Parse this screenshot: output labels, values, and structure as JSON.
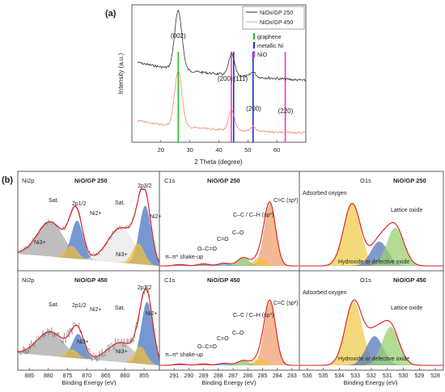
{
  "figure": {
    "panel_a_label": "(a)",
    "panel_b_label": "(b)"
  },
  "chart_data": [
    {
      "id": "xrd",
      "type": "line",
      "xlabel": "2 Theta (degree)",
      "ylabel": "Intensity (a.u.)",
      "xlim": [
        10,
        70
      ],
      "x_ticks": [
        20,
        30,
        40,
        50,
        60
      ],
      "legend": [
        {
          "name": "NiOx/GP 250",
          "color": "#333333"
        },
        {
          "name": "NiOx/GP 450",
          "color": "#f0a080"
        }
      ],
      "reference_legend": [
        {
          "name": "graphene",
          "color": "#22c022"
        },
        {
          "name": "metallic Ni",
          "color": "#1f2fd0"
        },
        {
          "name": "NiO",
          "color": "#ff33cc"
        }
      ],
      "reference_lines": [
        {
          "x": 26.0,
          "phase": "graphene",
          "color": "#22c022"
        },
        {
          "x": 44.3,
          "phase": "NiO",
          "color": "#ff33cc"
        },
        {
          "x": 45.1,
          "phase": "metallic Ni",
          "color": "#1f2fd0"
        },
        {
          "x": 51.8,
          "phase": "metallic Ni",
          "color": "#1f2fd0"
        },
        {
          "x": 62.9,
          "phase": "NiO",
          "color": "#ff33cc"
        }
      ],
      "peak_labels": [
        {
          "text": "(002)",
          "x": 26.0
        },
        {
          "text": "(200)",
          "x": 43.0
        },
        {
          "text": "(111)",
          "x": 46.5
        },
        {
          "text": "(200)",
          "x": 52.0
        },
        {
          "text": "(220)",
          "x": 63.0
        }
      ]
    },
    {
      "id": "ni2p",
      "type": "line",
      "element": "Ni2p",
      "xlabel": "Binding Energy (eV)",
      "xlim": [
        888,
        851
      ],
      "x_ticks": [
        885,
        880,
        875,
        870,
        865,
        860,
        855
      ],
      "panels": [
        {
          "sample": "NiO/GP 250",
          "labels": [
            "Sat.",
            "2p1/2",
            "Ni2+",
            "Ni3+",
            "Sat.",
            "Ni3+",
            "2p3/2",
            "Ni2+"
          ],
          "components": [
            {
              "name": "Sat.",
              "center": 879.5,
              "height": 0.5,
              "color": "#a8a8a8"
            },
            {
              "name": "Ni2+",
              "center": 872.5,
              "height": 0.55,
              "color": "#4a74c4"
            },
            {
              "name": "Ni3+",
              "center": 874.0,
              "height": 0.18,
              "color": "#f0c040"
            },
            {
              "name": "Sat.",
              "center": 861.0,
              "height": 0.5,
              "color": "#e8e8e8"
            },
            {
              "name": "Ni2+",
              "center": 854.7,
              "height": 0.85,
              "color": "#4a74c4"
            },
            {
              "name": "Ni3+",
              "center": 856.5,
              "height": 0.3,
              "color": "#f0c040"
            }
          ]
        },
        {
          "sample": "NiO/GP 450",
          "labels": [
            "Sat.",
            "2p1/2",
            "Ni2+",
            "Ni3+",
            "Sat.",
            "Ni3+",
            "2p3/2",
            "Ni2+"
          ],
          "components": [
            {
              "name": "Sat.",
              "center": 879.5,
              "height": 0.35,
              "color": "#a8a8a8"
            },
            {
              "name": "Ni2+",
              "center": 872.2,
              "height": 0.35,
              "color": "#4a74c4"
            },
            {
              "name": "Ni3+",
              "center": 873.8,
              "height": 0.12,
              "color": "#f0c040"
            },
            {
              "name": "Sat.",
              "center": 861.0,
              "height": 0.28,
              "color": "#b8b8b8"
            },
            {
              "name": "Ni2+",
              "center": 854.2,
              "height": 0.9,
              "color": "#4a74c4"
            },
            {
              "name": "Ni3+",
              "center": 856.0,
              "height": 0.25,
              "color": "#f0c040"
            }
          ]
        }
      ]
    },
    {
      "id": "c1s",
      "type": "line",
      "element": "C1s",
      "xlabel": "Binding Energy (eV)",
      "xlim": [
        292,
        282.5
      ],
      "x_ticks": [
        291,
        290,
        289,
        288,
        287,
        286,
        285,
        284,
        283
      ],
      "panels": [
        {
          "sample": "NiO/GP 250",
          "labels": [
            "C=C (sp²)",
            "C–C / C–H (sp³)",
            "C–O",
            "C=O",
            "O–C=O",
            "π–π* shake-up"
          ],
          "components": [
            {
              "name": "C=C (sp²)",
              "center": 284.5,
              "height": 0.9,
              "color": "#f0a070"
            },
            {
              "name": "C–C / C–H (sp³)",
              "center": 285.2,
              "height": 0.12,
              "color": "#f0c040"
            },
            {
              "name": "C–O",
              "center": 286.3,
              "height": 0.12,
              "color": "#8cc070"
            },
            {
              "name": "C=O",
              "center": 287.6,
              "height": 0.04,
              "color": "#58a0d0"
            },
            {
              "name": "O–C=O",
              "center": 289.0,
              "height": 0.03,
              "color": "#808080"
            },
            {
              "name": "π–π* shake-up",
              "center": 290.6,
              "height": 0.02,
              "color": "#9060b0"
            }
          ]
        },
        {
          "sample": "NiO/GP 450",
          "labels": [
            "C=C (sp²)",
            "C–C / C–H (sp³)",
            "C–O",
            "C=O",
            "O–C=O",
            "π–π* shake-up"
          ],
          "components": [
            {
              "name": "C=C (sp²)",
              "center": 284.5,
              "height": 0.92,
              "color": "#f0a070"
            },
            {
              "name": "C–C / C–H (sp³)",
              "center": 285.2,
              "height": 0.1,
              "color": "#f0c040"
            },
            {
              "name": "C–O",
              "center": 286.3,
              "height": 0.07,
              "color": "#8cc070"
            },
            {
              "name": "C=O",
              "center": 287.6,
              "height": 0.03,
              "color": "#58a0d0"
            },
            {
              "name": "O–C=O",
              "center": 289.0,
              "height": 0.02,
              "color": "#808080"
            },
            {
              "name": "π–π* shake-up",
              "center": 290.6,
              "height": 0.02,
              "color": "#9060b0"
            }
          ]
        }
      ]
    },
    {
      "id": "o1s",
      "type": "line",
      "element": "O1s",
      "xlabel": "Binding Energy (eV)",
      "xlim": [
        536.5,
        527.5
      ],
      "x_ticks": [
        536,
        535,
        534,
        533,
        532,
        531,
        530,
        529,
        528
      ],
      "panels": [
        {
          "sample": "NiO/GP 250",
          "labels": [
            "Adsorbed oxygen",
            "Lattice oxide",
            "Hydroxide or defective oxide"
          ],
          "components": [
            {
              "name": "Adsorbed oxygen",
              "center": 533.2,
              "height": 0.9,
              "color": "#f0cc50"
            },
            {
              "name": "Hydroxide or defective oxide",
              "center": 531.5,
              "height": 0.35,
              "color": "#5878b8"
            },
            {
              "name": "Lattice oxide",
              "center": 530.5,
              "height": 0.55,
              "color": "#98d070"
            }
          ]
        },
        {
          "sample": "NiO/GP 450",
          "labels": [
            "Adsorbed oxygen",
            "Lattice oxide",
            "Hydroxide or defective oxide"
          ],
          "components": [
            {
              "name": "Adsorbed oxygen",
              "center": 533.1,
              "height": 0.92,
              "color": "#f0cc50"
            },
            {
              "name": "Hydroxide or defective oxide",
              "center": 531.8,
              "height": 0.42,
              "color": "#5878b8"
            },
            {
              "name": "Lattice oxide",
              "center": 530.8,
              "height": 0.55,
              "color": "#98d070"
            }
          ]
        }
      ]
    }
  ]
}
